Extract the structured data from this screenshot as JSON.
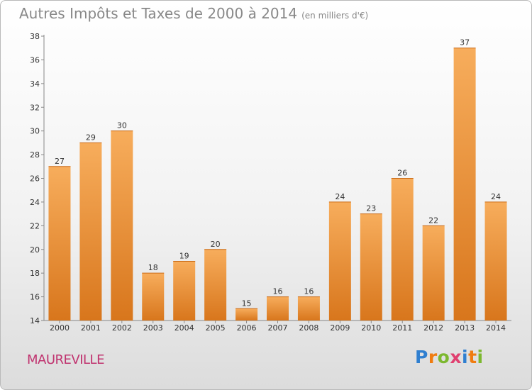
{
  "header": {
    "title": "Autres Impôts et Taxes de 2000 à 2014",
    "subtitle": "(en milliers d'€)"
  },
  "commune": "MAUREVILLE",
  "logo": {
    "text": "Proxiti",
    "letter_colors": [
      "#2f7fd0",
      "#f07c10",
      "#7cb82f",
      "#e04070",
      "#2f7fd0",
      "#f07c10",
      "#7cb82f"
    ]
  },
  "colors": {
    "bar_light": "#f5a54f",
    "bar_dark": "#d9781f",
    "commune": "#c0336f"
  },
  "chart_data": {
    "type": "bar",
    "title": "Autres Impôts et Taxes de 2000 à 2014",
    "subtitle": "(en milliers d'€)",
    "categories": [
      "2000",
      "2001",
      "2002",
      "2003",
      "2004",
      "2005",
      "2006",
      "2007",
      "2008",
      "2009",
      "2010",
      "2011",
      "2012",
      "2013",
      "2014"
    ],
    "values": [
      27,
      29,
      30,
      18,
      19,
      20,
      15,
      16,
      16,
      24,
      23,
      26,
      22,
      37,
      24
    ],
    "ylim": [
      14,
      38
    ],
    "yticks": [
      14,
      16,
      18,
      20,
      22,
      24,
      26,
      28,
      30,
      32,
      34,
      36,
      38
    ],
    "grid": false
  }
}
